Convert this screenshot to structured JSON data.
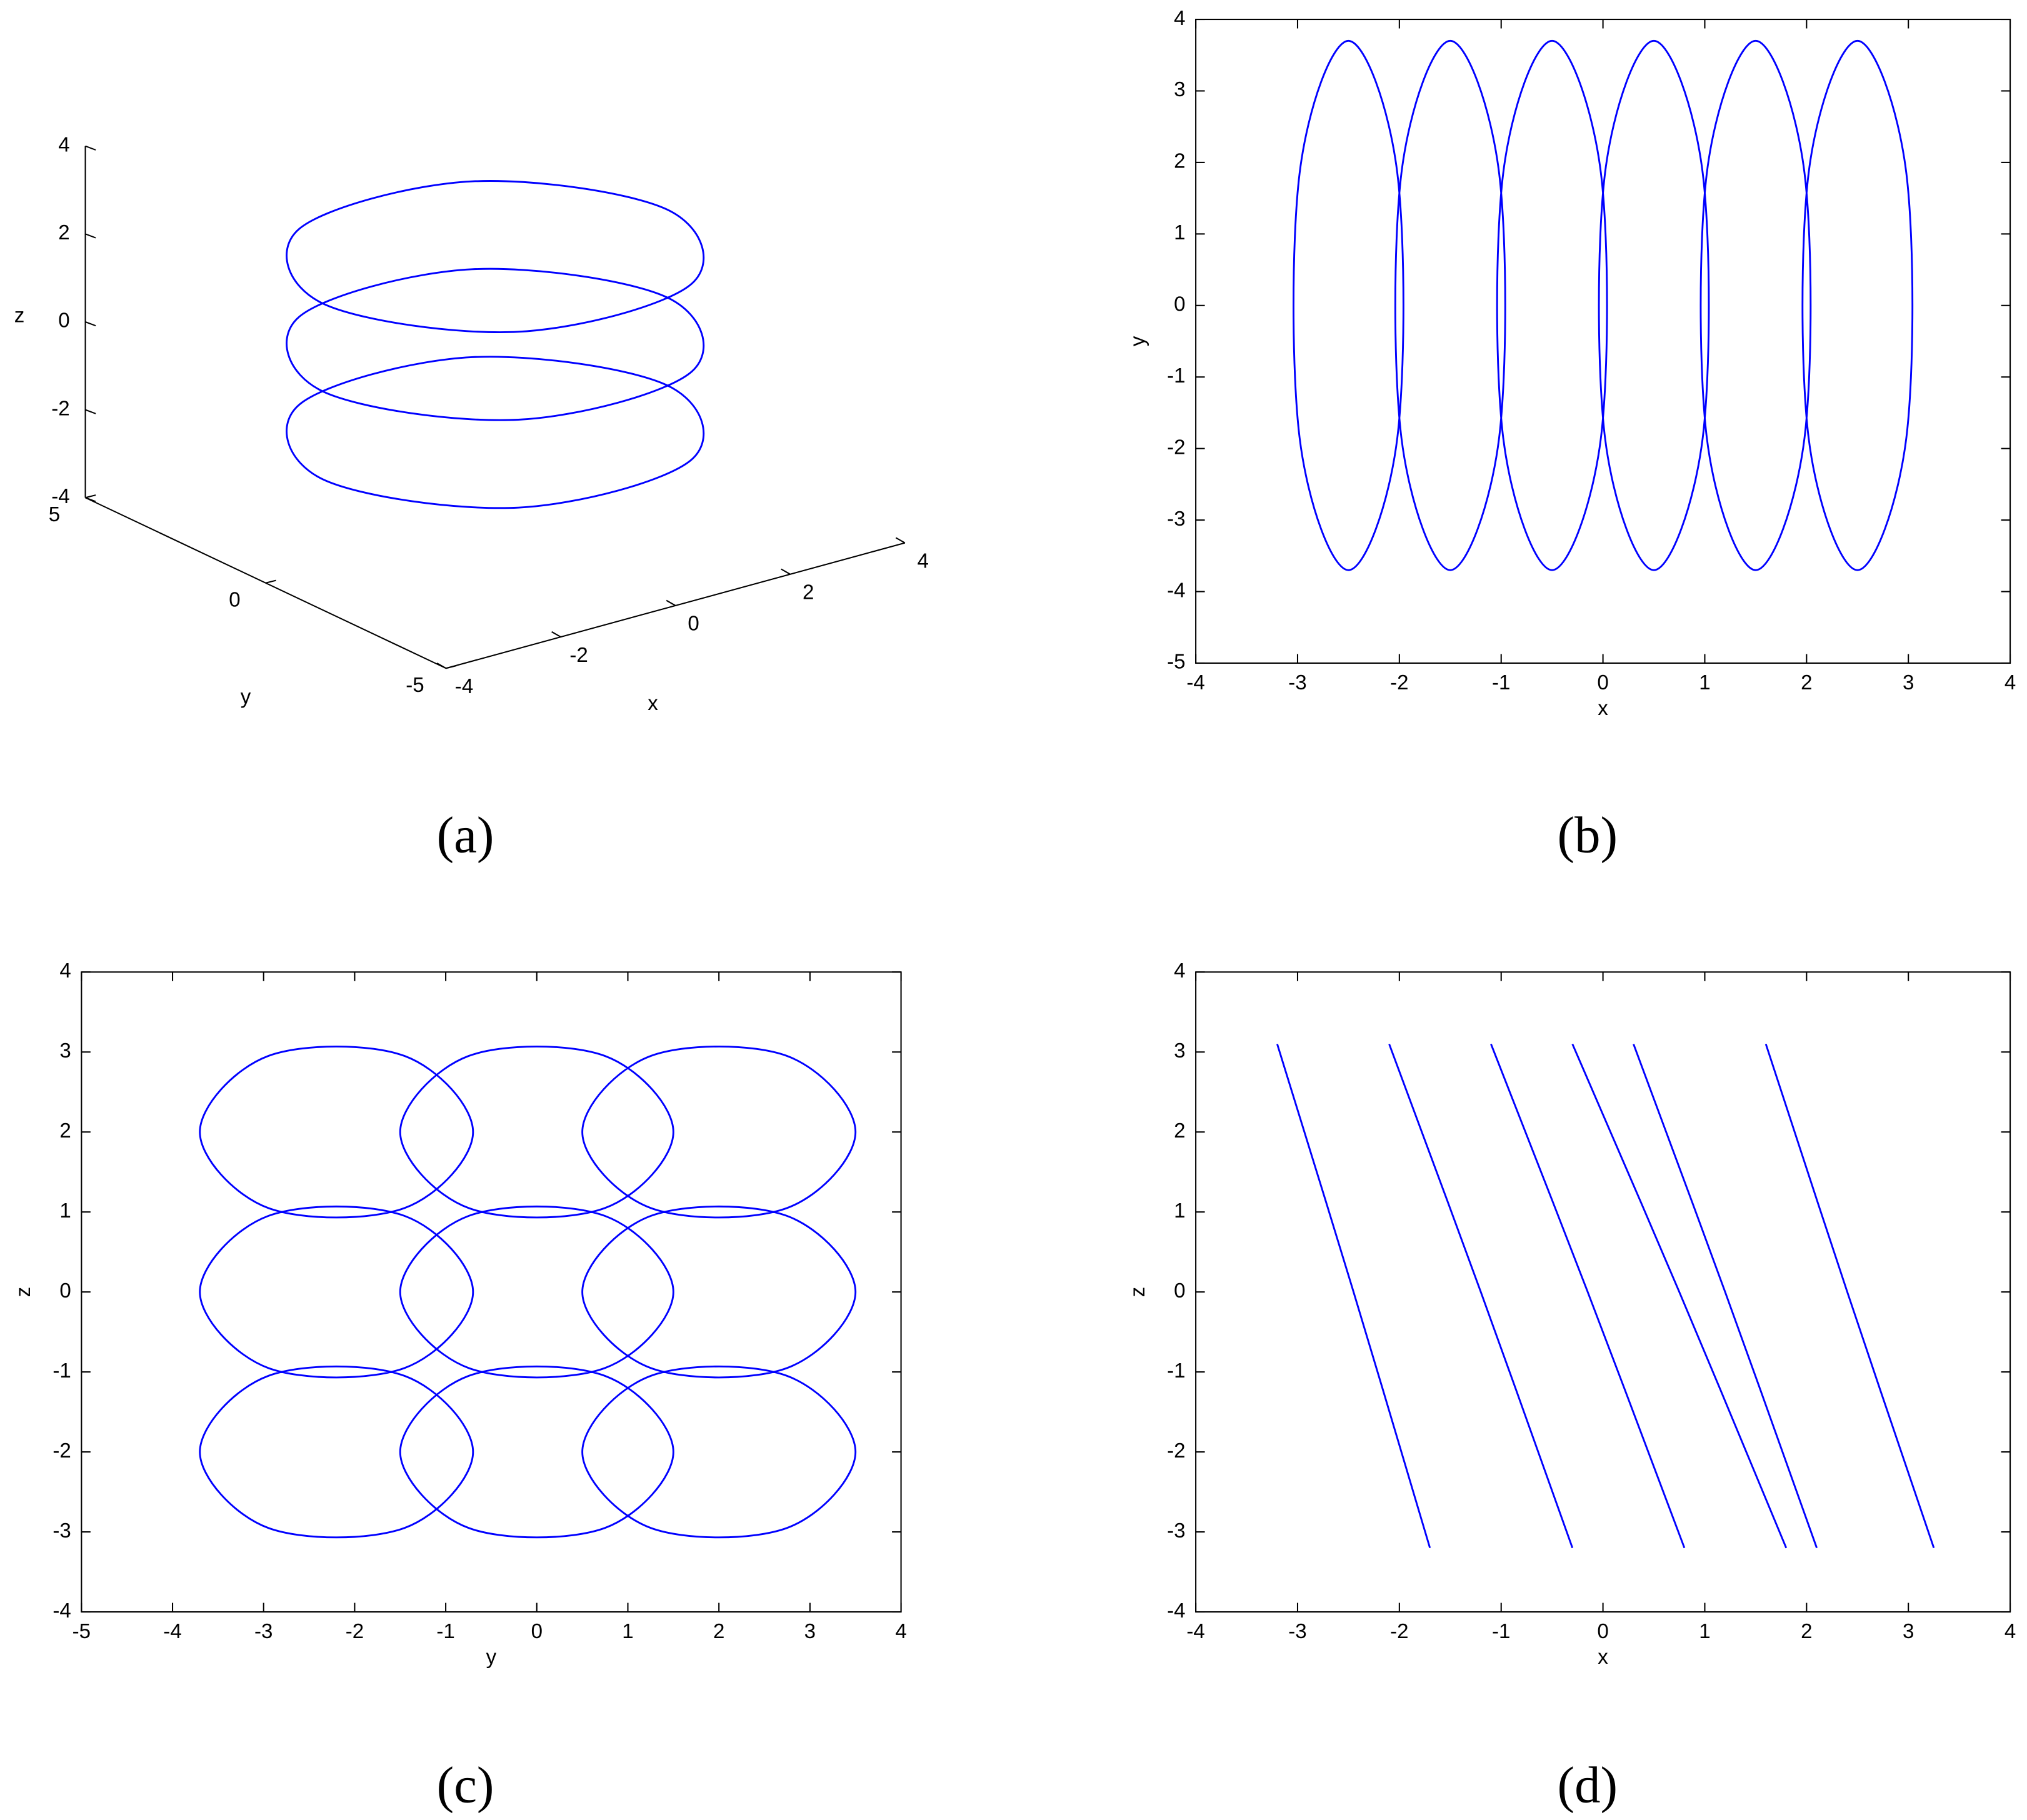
{
  "chart_data": [
    {
      "type": "line3d",
      "panel_label": "(a)",
      "xlabel": "x",
      "ylabel": "y",
      "zlabel": "z",
      "color": "#0000ff",
      "xlim": [
        -4,
        4
      ],
      "ylim": [
        -5,
        5
      ],
      "zlim": [
        -4,
        4
      ],
      "xticks": [
        -4,
        -2,
        0,
        2,
        4
      ],
      "yticks": [
        -5,
        0,
        5
      ],
      "zticks": [
        -4,
        -2,
        0,
        2,
        4
      ],
      "x": [
        3,
        1.5,
        -1.5,
        -3,
        -1.5,
        1.5,
        3,
        null,
        3,
        1.5,
        -1.5,
        -3,
        -1.5,
        1.5,
        3,
        null,
        3,
        1.5,
        -1.5,
        -3,
        -1.5,
        1.5,
        3
      ],
      "y": [
        0,
        3.03,
        3.03,
        0,
        -3.03,
        -3.03,
        0,
        null,
        0,
        3.03,
        3.03,
        0,
        -3.03,
        -3.03,
        0,
        null,
        0,
        3.03,
        3.03,
        0,
        -3.03,
        -3.03,
        0
      ],
      "z": [
        2,
        2,
        2,
        2,
        2,
        2,
        2,
        null,
        0,
        0,
        0,
        0,
        0,
        0,
        0,
        null,
        -2,
        -2,
        -2,
        -2,
        -2,
        -2,
        -2
      ]
    },
    {
      "type": "line",
      "panel_label": "(b)",
      "xlabel": "x",
      "ylabel": "y",
      "color": "#0000ff",
      "xlim": [
        -4,
        4
      ],
      "ylim": [
        -5,
        4
      ],
      "xticks": [
        -4,
        -3,
        -2,
        -1,
        0,
        1,
        2,
        3,
        4
      ],
      "yticks": [
        -5,
        -4,
        -3,
        -2,
        -1,
        0,
        1,
        2,
        3,
        4
      ],
      "x": [
        -2.5,
        -2.02,
        -2.02,
        -2.5,
        -2.98,
        -2.98,
        -2.5,
        null,
        -1.5,
        -1.02,
        -1.02,
        -1.5,
        -1.98,
        -1.98,
        -1.5,
        null,
        -0.5,
        -0.02,
        -0.02,
        -0.5,
        -0.98,
        -0.98,
        -0.5,
        null,
        0.5,
        0.98,
        0.98,
        0.5,
        0.02,
        0.02,
        0.5,
        null,
        1.5,
        1.98,
        1.98,
        1.5,
        1.02,
        1.02,
        1.5,
        null,
        2.5,
        2.98,
        2.98,
        2.5,
        2.02,
        2.02,
        2.5
      ],
      "y": [
        3.7,
        1.85,
        -1.85,
        -3.7,
        -1.85,
        1.85,
        3.7,
        null,
        3.7,
        1.85,
        -1.85,
        -3.7,
        -1.85,
        1.85,
        3.7,
        null,
        3.7,
        1.85,
        -1.85,
        -3.7,
        -1.85,
        1.85,
        3.7,
        null,
        3.7,
        1.85,
        -1.85,
        -3.7,
        -1.85,
        1.85,
        3.7,
        null,
        3.7,
        1.85,
        -1.85,
        -3.7,
        -1.85,
        1.85,
        3.7,
        null,
        3.7,
        1.85,
        -1.85,
        -3.7,
        -1.85,
        1.85,
        3.7
      ]
    },
    {
      "type": "line",
      "panel_label": "(c)",
      "xlabel": "y",
      "ylabel": "z",
      "color": "#0000ff",
      "xlim": [
        -5,
        4
      ],
      "ylim": [
        -4,
        4
      ],
      "xticks": [
        -5,
        -4,
        -3,
        -2,
        -1,
        0,
        1,
        2,
        3,
        4
      ],
      "yticks": [
        -4,
        -3,
        -2,
        -1,
        0,
        1,
        2,
        3,
        4
      ],
      "x": [
        -0.7,
        -1.45,
        -2.95,
        -3.7,
        -2.95,
        -1.45,
        -0.7,
        null,
        1.5,
        0.75,
        -0.75,
        -1.5,
        -0.75,
        0.75,
        1.5,
        null,
        3.5,
        2.75,
        1.25,
        0.5,
        1.25,
        2.75,
        3.5,
        null,
        -0.7,
        -1.45,
        -2.95,
        -3.7,
        -2.95,
        -1.45,
        -0.7,
        null,
        1.5,
        0.75,
        -0.75,
        -1.5,
        -0.75,
        0.75,
        1.5,
        null,
        3.5,
        2.75,
        1.25,
        0.5,
        1.25,
        2.75,
        3.5,
        null,
        -0.7,
        -1.45,
        -2.95,
        -3.7,
        -2.95,
        -1.45,
        -0.7,
        null,
        1.5,
        0.75,
        -0.75,
        -1.5,
        -0.75,
        0.75,
        1.5,
        null,
        3.5,
        2.75,
        1.25,
        0.5,
        1.25,
        2.75,
        3.5
      ],
      "y": [
        2,
        2.95,
        2.95,
        2,
        1.05,
        1.05,
        2,
        null,
        2,
        2.95,
        2.95,
        2,
        1.05,
        1.05,
        2,
        null,
        2,
        2.95,
        2.95,
        2,
        1.05,
        1.05,
        2,
        null,
        0,
        0.95,
        0.95,
        0,
        -0.95,
        -0.95,
        0,
        null,
        0,
        0.95,
        0.95,
        0,
        -0.95,
        -0.95,
        0,
        null,
        0,
        0.95,
        0.95,
        0,
        -0.95,
        -0.95,
        0,
        null,
        -2,
        -1.05,
        -1.05,
        -2,
        -2.95,
        -2.95,
        -2,
        null,
        -2,
        -1.05,
        -1.05,
        -2,
        -2.95,
        -2.95,
        -2,
        null,
        -2,
        -1.05,
        -1.05,
        -2,
        -2.95,
        -2.95,
        -2
      ]
    },
    {
      "type": "line",
      "panel_label": "(d)",
      "xlabel": "x",
      "ylabel": "z",
      "color": "#0000ff",
      "xlim": [
        -4,
        4
      ],
      "ylim": [
        -4,
        4
      ],
      "xticks": [
        -4,
        -3,
        -2,
        -1,
        0,
        1,
        2,
        3,
        4
      ],
      "yticks": [
        -4,
        -3,
        -2,
        -1,
        0,
        1,
        2,
        3,
        4
      ],
      "x": [
        -3.2,
        -2.45,
        -1.7,
        null,
        -2.1,
        -1.2,
        -0.3,
        null,
        -1.1,
        -0.15,
        0.8,
        null,
        -0.3,
        0.75,
        1.8,
        null,
        0.3,
        1.2,
        2.1,
        null,
        1.6,
        2.4,
        3.25
      ],
      "y": [
        3.1,
        0,
        -3.2,
        null,
        3.1,
        0,
        -3.2,
        null,
        3.1,
        0,
        -3.2,
        null,
        3.1,
        0,
        -3.2,
        null,
        3.1,
        0,
        -3.2,
        null,
        3.1,
        0,
        -3.2
      ]
    }
  ]
}
